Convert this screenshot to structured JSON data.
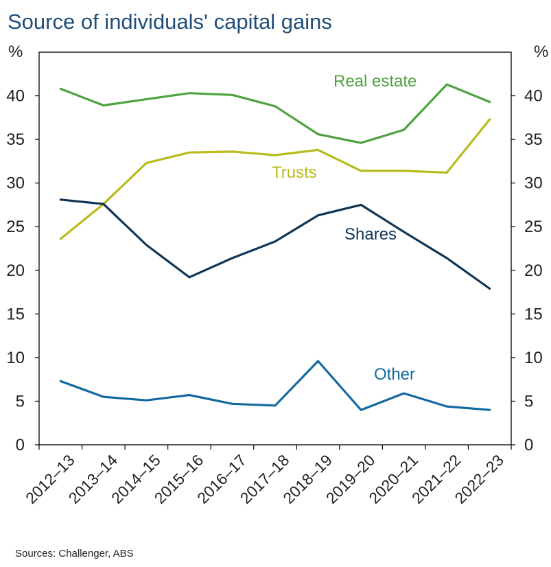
{
  "chart_data": {
    "type": "line",
    "title": "Source of individuals' capital gains",
    "unit_left": "%",
    "unit_right": "%",
    "ylim": [
      0,
      45
    ],
    "yticks": [
      0,
      5,
      10,
      15,
      20,
      25,
      30,
      35,
      40
    ],
    "categories": [
      "2012–13",
      "2013–14",
      "2014–15",
      "2015–16",
      "2016–17",
      "2017–18",
      "2018–19",
      "2019–20",
      "2020–21",
      "2021–22",
      "2022–23"
    ],
    "series": [
      {
        "name": "Real estate",
        "color": "#4ea23f",
        "values": [
          40.8,
          38.9,
          39.6,
          40.3,
          40.1,
          38.8,
          35.6,
          34.6,
          36.1,
          41.3,
          39.3
        ]
      },
      {
        "name": "Trusts",
        "color": "#b8bb1a",
        "values": [
          23.6,
          27.6,
          32.3,
          33.5,
          33.6,
          33.2,
          33.8,
          31.4,
          31.4,
          31.2,
          37.3
        ]
      },
      {
        "name": "Shares",
        "color": "#0f3556",
        "values": [
          28.1,
          27.6,
          22.9,
          19.2,
          21.4,
          23.3,
          26.3,
          27.5,
          24.4,
          21.4,
          17.9
        ]
      },
      {
        "name": "Other",
        "color": "#13699f",
        "values": [
          7.3,
          5.5,
          5.1,
          5.7,
          4.7,
          4.5,
          9.6,
          4.0,
          5.9,
          4.4,
          4.0
        ]
      }
    ],
    "source": "Sources: Challenger, ABS"
  }
}
